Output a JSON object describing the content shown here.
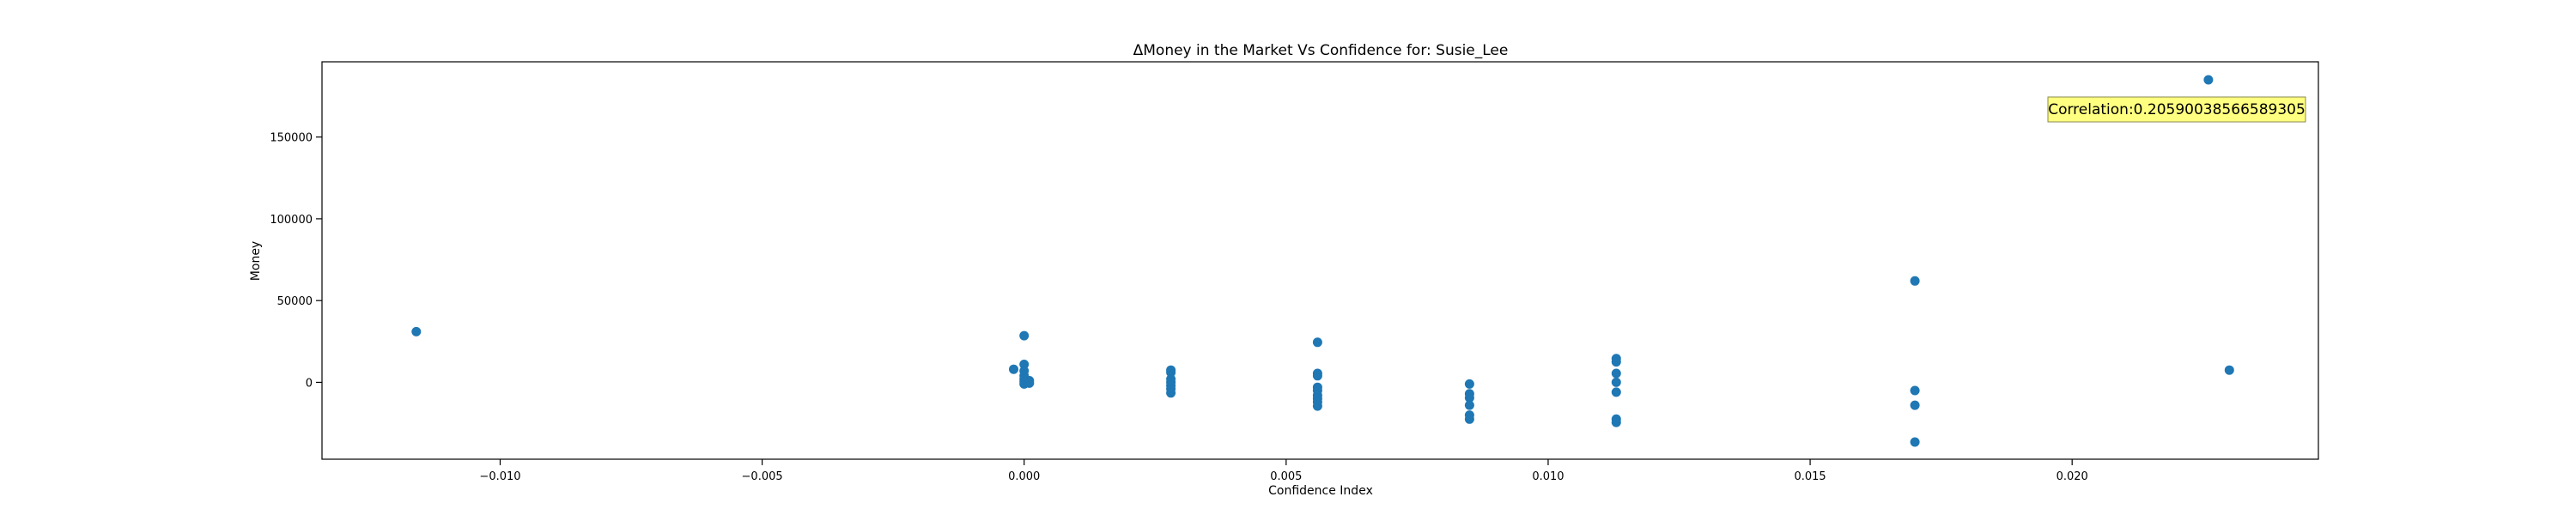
{
  "chart_data": {
    "type": "scatter",
    "title": "ΔMoney in the Market Vs Confidence for: Susie_Lee",
    "xlabel": "Confidence Index",
    "ylabel": "Money",
    "xlim": [
      -0.0134,
      0.0247
    ],
    "ylim": [
      -47000,
      196000
    ],
    "xticks": [
      -0.01,
      -0.005,
      0.0,
      0.005,
      0.01,
      0.015,
      0.02
    ],
    "xtick_labels": [
      "−0.010",
      "−0.005",
      "0.000",
      "0.005",
      "0.010",
      "0.015",
      "0.020"
    ],
    "yticks": [
      0,
      50000,
      100000,
      150000
    ],
    "ytick_labels": [
      "0",
      "50000",
      "100000",
      "150000"
    ],
    "grid": false,
    "marker_color": "#1f77b4",
    "annotation": {
      "text": "Correlation:0.20590038566589305",
      "background": "#ffff80",
      "placement": "top-right"
    },
    "points": [
      {
        "x": -0.0116,
        "y": 31000
      },
      {
        "x": -0.0002,
        "y": 8000
      },
      {
        "x": 0.0,
        "y": 28500
      },
      {
        "x": 0.0,
        "y": 11000
      },
      {
        "x": 0.0,
        "y": 7000
      },
      {
        "x": 0.0,
        "y": 4000
      },
      {
        "x": 0.0,
        "y": 2000
      },
      {
        "x": 0.0,
        "y": 500
      },
      {
        "x": 0.0,
        "y": -1000
      },
      {
        "x": 0.0001,
        "y": 1000
      },
      {
        "x": 0.0001,
        "y": -500
      },
      {
        "x": 0.0028,
        "y": 7500
      },
      {
        "x": 0.0028,
        "y": 6000
      },
      {
        "x": 0.0028,
        "y": 2000
      },
      {
        "x": 0.0028,
        "y": 0
      },
      {
        "x": 0.0028,
        "y": -2000
      },
      {
        "x": 0.0028,
        "y": -4000
      },
      {
        "x": 0.0028,
        "y": -6500
      },
      {
        "x": 0.0056,
        "y": 24500
      },
      {
        "x": 0.0056,
        "y": 5500
      },
      {
        "x": 0.0056,
        "y": 4000
      },
      {
        "x": 0.0056,
        "y": -3000
      },
      {
        "x": 0.0056,
        "y": -5000
      },
      {
        "x": 0.0056,
        "y": -8000
      },
      {
        "x": 0.0056,
        "y": -10000
      },
      {
        "x": 0.0056,
        "y": -12000
      },
      {
        "x": 0.0056,
        "y": -14500
      },
      {
        "x": 0.0085,
        "y": -1000
      },
      {
        "x": 0.0085,
        "y": -7000
      },
      {
        "x": 0.0085,
        "y": -9500
      },
      {
        "x": 0.0085,
        "y": -14000
      },
      {
        "x": 0.0085,
        "y": -20000
      },
      {
        "x": 0.0085,
        "y": -22500
      },
      {
        "x": 0.0113,
        "y": 14500
      },
      {
        "x": 0.0113,
        "y": 12500
      },
      {
        "x": 0.0113,
        "y": 5500
      },
      {
        "x": 0.0113,
        "y": 0
      },
      {
        "x": 0.0113,
        "y": -6000
      },
      {
        "x": 0.0113,
        "y": -22500
      },
      {
        "x": 0.0113,
        "y": -24500
      },
      {
        "x": 0.017,
        "y": 62000
      },
      {
        "x": 0.017,
        "y": -5000
      },
      {
        "x": 0.017,
        "y": -14000
      },
      {
        "x": 0.017,
        "y": -36500
      },
      {
        "x": 0.0226,
        "y": 185000
      },
      {
        "x": 0.023,
        "y": 7500
      }
    ]
  }
}
